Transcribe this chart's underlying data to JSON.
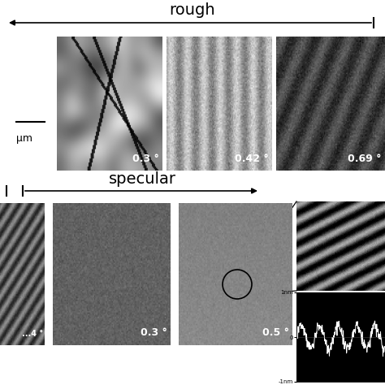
{
  "title_rough": "rough",
  "title_specular": "specular",
  "bg_color": "#ffffff",
  "scale_bar_label": "μm"
}
